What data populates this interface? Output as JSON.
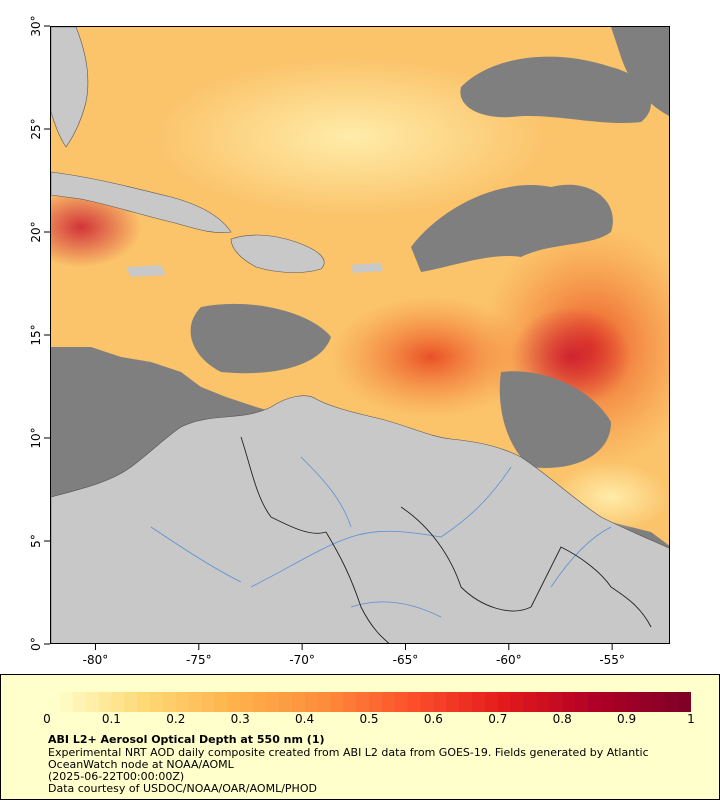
{
  "map": {
    "lat_ticks": [
      "0°",
      "5°",
      "10°",
      "15°",
      "20°",
      "25°",
      "30°"
    ],
    "lon_ticks": [
      "-80°",
      "-75°",
      "-70°",
      "-65°",
      "-60°",
      "-55°"
    ],
    "colors": {
      "no_data": "#7f7f7f",
      "land": "#c8c8c8",
      "rivers": "#5b8fd6",
      "borders": "#000000"
    }
  },
  "colorbar": {
    "ticks": [
      "0",
      "0.1",
      "0.2",
      "0.3",
      "0.4",
      "0.5",
      "0.6",
      "0.7",
      "0.8",
      "0.9",
      "1"
    ],
    "range": [
      0,
      1
    ],
    "colors": [
      "#ffffcc",
      "#fed976",
      "#feb24c",
      "#fd8d3c",
      "#fc4e2a",
      "#e31a1c",
      "#b10026",
      "#800026"
    ]
  },
  "legend": {
    "title": "ABI L2+ Aerosol Optical Depth at 550 nm (1)",
    "line1": "Experimental NRT AOD daily composite created from ABI L2 data from GOES-19. Fields generated by Atlantic",
    "line2": "OceanWatch node at NOAA/AOML",
    "line3": "(2025-06-22T00:00:00Z)",
    "line4": "Data courtesy of USDOC/NOAA/OAR/AOML/PHOD"
  }
}
